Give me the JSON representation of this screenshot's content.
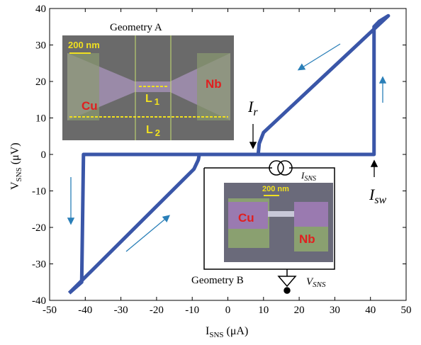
{
  "chart_data": {
    "type": "line",
    "color": "#3a56a8",
    "xlabel": {
      "symbol": "I",
      "subscript": "SNS",
      "unit": "(μA)"
    },
    "ylabel": {
      "symbol": "V",
      "subscript": "SNS",
      "unit": "(μV)"
    },
    "xlim": [
      -50,
      50
    ],
    "xticks": [
      -50,
      -40,
      -30,
      -20,
      -10,
      0,
      10,
      20,
      30,
      40,
      50
    ],
    "ylim": [
      -40,
      40
    ],
    "yticks": [
      -40,
      -30,
      -20,
      -10,
      0,
      10,
      20,
      30,
      40
    ],
    "x": [
      -44.5,
      -9.5,
      -8.3,
      -8,
      41,
      41,
      42.5,
      45,
      10,
      8.8,
      8.5,
      -40.5,
      -41,
      -44.5
    ],
    "series": [
      {
        "values": [
          -38,
          -4,
          -1.5,
          0,
          0,
          35,
          36.5,
          38,
          6,
          3,
          0,
          0,
          -35,
          -38
        ]
      }
    ],
    "annotations": {
      "ir": {
        "symbol": "I",
        "subscript": "r"
      },
      "isw": {
        "symbol": "I",
        "subscript": "sw"
      },
      "geometry_a": "Geometry A",
      "scale_a": "200 nm",
      "nb_a": "Nb",
      "cu_a": "Cu",
      "l1": "L",
      "l1_sub": "1",
      "l2": "L",
      "l2_sub": "2",
      "geometry_b": "Geometry B",
      "scale_b": "200 nm",
      "cu_b": "Cu",
      "nb_b": "Nb",
      "isns": {
        "symbol": "I",
        "subscript": "SNS"
      },
      "vsns": {
        "symbol": "V",
        "subscript": "SNS"
      }
    }
  }
}
